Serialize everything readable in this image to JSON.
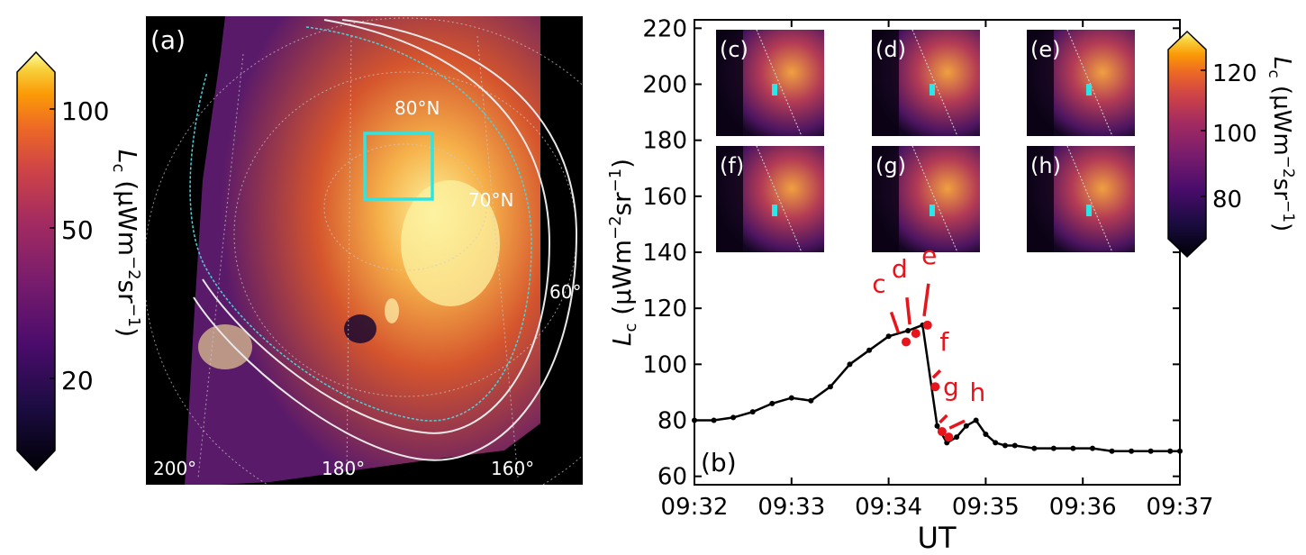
{
  "panel_a": {
    "label": "(a)",
    "lat_labels": [
      "80°N",
      "70°N",
      "60°"
    ],
    "lon_labels": [
      "200°",
      "180°",
      "160°"
    ]
  },
  "colorbar_left": {
    "label_main": "L",
    "label_sub": "c",
    "label_units": " (μWm",
    "label_exp": "−2",
    "label_tail": "sr",
    "label_exp2": "−1",
    "label_close": ")",
    "ticks": [
      "100",
      "50",
      "20"
    ]
  },
  "colorbar_right": {
    "ticks": [
      "120",
      "100",
      "80"
    ],
    "label_main": "L",
    "label_sub": "c",
    "label_units": " (μWm",
    "label_exp": "−2",
    "label_tail": "sr",
    "label_exp2": "−1",
    "label_close": ")"
  },
  "insets": [
    "(c)",
    "(d)",
    "(e)",
    "(f)",
    "(g)",
    "(h)"
  ],
  "chart_data": {
    "type": "line",
    "panel_label": "(b)",
    "xlabel": "UT",
    "ylabel_main": "L",
    "ylabel_sub": "c",
    "ylabel_units": " (μWm",
    "ylabel_exp": "−2",
    "ylabel_tail": "sr",
    "ylabel_exp2": "−1",
    "ylabel_close": ")",
    "x_ticks": [
      "09:32",
      "09:33",
      "09:34",
      "09:35",
      "09:36",
      "09:37"
    ],
    "y_ticks": [
      60,
      80,
      100,
      120,
      140,
      160,
      180,
      200,
      220
    ],
    "xlim_minutes": [
      0,
      5
    ],
    "ylim": [
      57,
      223
    ],
    "x_minutes": [
      0.0,
      0.2,
      0.4,
      0.6,
      0.8,
      1.0,
      1.2,
      1.4,
      1.6,
      1.8,
      2.0,
      2.2,
      2.35,
      2.5,
      2.6,
      2.7,
      2.8,
      2.9,
      3.0,
      3.1,
      3.2,
      3.3,
      3.5,
      3.7,
      3.9,
      4.1,
      4.3,
      4.5,
      4.7,
      4.9,
      5.0
    ],
    "values": [
      80,
      80,
      81,
      83,
      86,
      88,
      87,
      92,
      100,
      105,
      110,
      112,
      114,
      78,
      72,
      74,
      78,
      80,
      75,
      72,
      71,
      71,
      70,
      70,
      70,
      70,
      69,
      69,
      69,
      69,
      69
    ],
    "markers": [
      {
        "label": "c",
        "x_minutes": 2.18,
        "value": 108
      },
      {
        "label": "d",
        "x_minutes": 2.28,
        "value": 111
      },
      {
        "label": "e",
        "x_minutes": 2.4,
        "value": 114
      },
      {
        "label": "f",
        "x_minutes": 2.48,
        "value": 92
      },
      {
        "label": "g",
        "x_minutes": 2.55,
        "value": 76
      },
      {
        "label": "h",
        "x_minutes": 2.62,
        "value": 74
      }
    ],
    "marker_color": "#e8141b"
  }
}
